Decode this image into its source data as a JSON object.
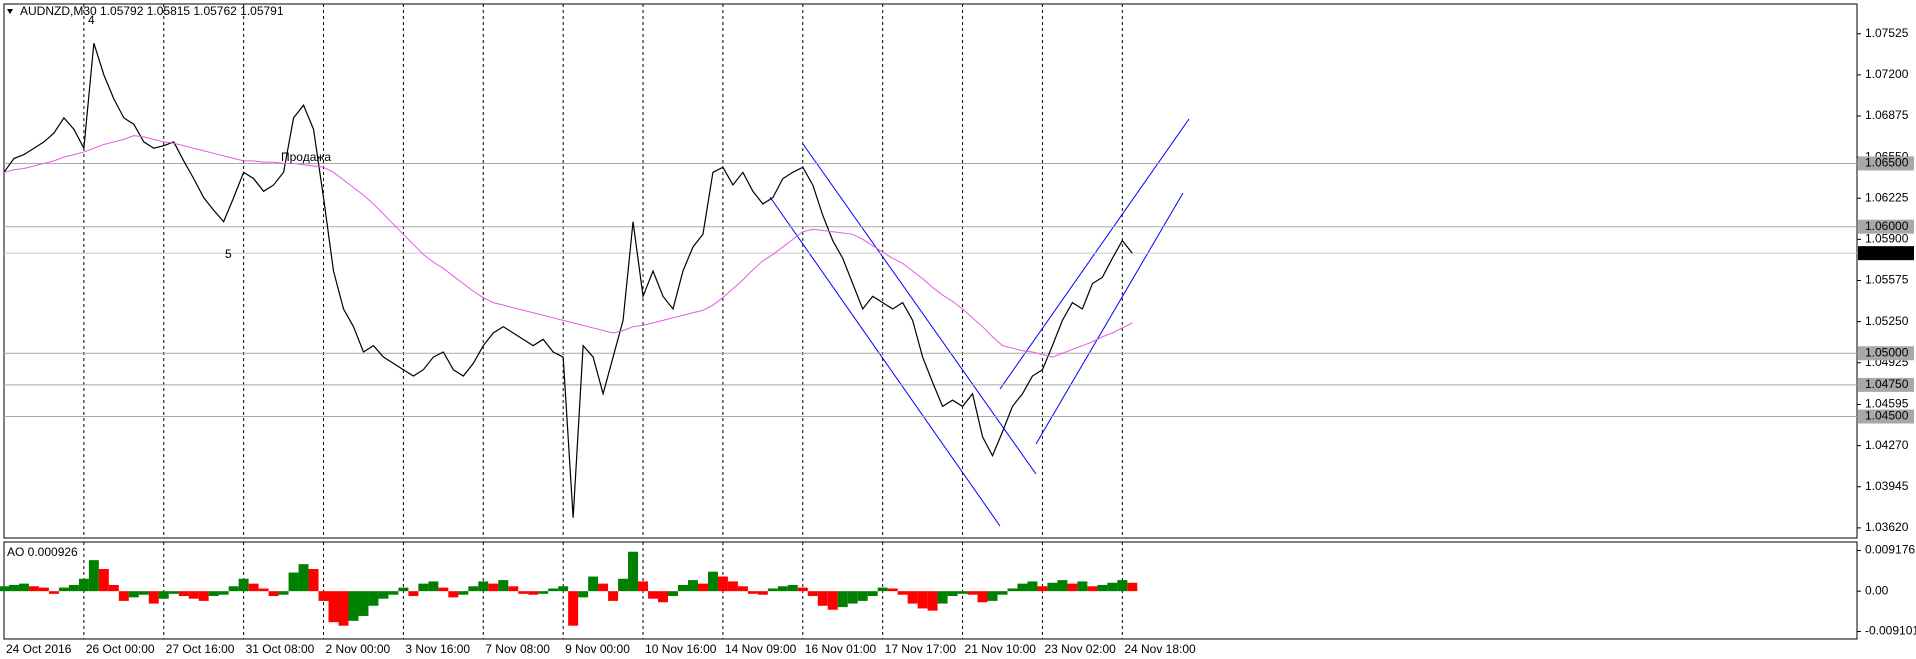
{
  "chart_data": [
    {
      "type": "line",
      "title": "AUDNZD,M30  1.05792 1.05815 1.05762 1.05791",
      "categories": [
        "24 Oct 2016",
        null,
        null,
        null,
        null,
        null,
        null,
        null,
        "26 Oct 00:00",
        null,
        null,
        null,
        null,
        null,
        null,
        null,
        "27 Oct 16:00",
        null,
        null,
        null,
        null,
        null,
        null,
        null,
        "31 Oct 08:00",
        null,
        null,
        null,
        null,
        null,
        null,
        null,
        "2 Nov 00:00",
        null,
        null,
        null,
        null,
        null,
        null,
        null,
        "3 Nov 16:00",
        null,
        null,
        null,
        null,
        null,
        null,
        null,
        "7 Nov 08:00",
        null,
        null,
        null,
        null,
        null,
        null,
        null,
        "9 Nov 00:00",
        null,
        null,
        null,
        null,
        null,
        null,
        null,
        "10 Nov 16:00",
        null,
        null,
        null,
        null,
        null,
        null,
        null,
        "14 Nov 09:00",
        null,
        null,
        null,
        null,
        null,
        null,
        null,
        "16 Nov 01:00",
        null,
        null,
        null,
        null,
        null,
        null,
        null,
        "17 Nov 17:00",
        null,
        null,
        null,
        null,
        null,
        null,
        null,
        "21 Nov 10:00",
        null,
        null,
        null,
        null,
        null,
        null,
        null,
        "23 Nov 02:00",
        null,
        null,
        null,
        null,
        null,
        null,
        null,
        "24 Nov 18:00",
        null
      ],
      "series": [
        {
          "color": "#000000",
          "values": [
            1.0643,
            1.0654,
            1.0657,
            1.0662,
            1.0667,
            1.0674,
            1.0686,
            1.0677,
            1.0662,
            1.0745,
            1.072,
            1.0701,
            1.0686,
            1.0681,
            1.0667,
            1.0662,
            1.0664,
            1.0667,
            1.0652,
            1.0638,
            1.0623,
            1.0613,
            1.0604,
            1.0623,
            1.0643,
            1.0638,
            1.0628,
            1.0633,
            1.0643,
            1.0686,
            1.0696,
            1.0677,
            1.0623,
            1.0565,
            1.0535,
            1.0521,
            1.0501,
            1.0506,
            1.0497,
            1.0492,
            1.0487,
            1.0482,
            1.0487,
            1.0497,
            1.0501,
            1.0487,
            1.0482,
            1.0492,
            1.0506,
            1.0516,
            1.0521,
            1.0516,
            1.0511,
            1.0506,
            1.0511,
            1.0501,
            1.0497,
            1.037,
            1.0506,
            1.0497,
            1.0468,
            1.0497,
            1.0526,
            1.0604,
            1.0545,
            1.0565,
            1.0545,
            1.0535,
            1.0565,
            1.0584,
            1.0594,
            1.0643,
            1.0647,
            1.0633,
            1.0643,
            1.0628,
            1.0618,
            1.0623,
            1.0638,
            1.0643,
            1.0647,
            1.0633,
            1.0609,
            1.0589,
            1.0575,
            1.0555,
            1.0535,
            1.0545,
            1.054,
            1.0535,
            1.054,
            1.0526,
            1.0497,
            1.0477,
            1.0458,
            1.0463,
            1.0458,
            1.0468,
            1.0434,
            1.0419,
            1.0438,
            1.0458,
            1.0468,
            1.0482,
            1.0487,
            1.0506,
            1.0526,
            1.054,
            1.0535,
            1.0555,
            1.056,
            1.0575,
            1.0589,
            1.0579
          ]
        },
        {
          "color": "#e35be3",
          "values": [
            1.0643,
            1.0645,
            1.0646,
            1.0648,
            1.065,
            1.0652,
            1.0655,
            1.0657,
            1.0659,
            1.0662,
            1.0665,
            1.0667,
            1.0669,
            1.0672,
            1.0671,
            1.0669,
            1.0667,
            1.0666,
            1.0664,
            1.0662,
            1.066,
            1.0658,
            1.0656,
            1.0654,
            1.0652,
            1.0652,
            1.0651,
            1.0651,
            1.065,
            1.065,
            1.0649,
            1.0648,
            1.0647,
            1.0643,
            1.0637,
            1.0631,
            1.0625,
            1.0618,
            1.061,
            1.0602,
            1.0594,
            1.0586,
            1.0578,
            1.0572,
            1.0567,
            1.0561,
            1.0555,
            1.0549,
            1.0544,
            1.054,
            1.0538,
            1.0536,
            1.0534,
            1.0532,
            1.053,
            1.0528,
            1.0526,
            1.0524,
            1.0522,
            1.052,
            1.0518,
            1.0516,
            1.0518,
            1.0521,
            1.0522,
            1.0524,
            1.0526,
            1.0528,
            1.053,
            1.0532,
            1.0534,
            1.0538,
            1.0544,
            1.0551,
            1.0558,
            1.0566,
            1.0573,
            1.0578,
            1.0584,
            1.059,
            1.0596,
            1.0598,
            1.0597,
            1.0596,
            1.0595,
            1.0594,
            1.059,
            1.0585,
            1.058,
            1.0575,
            1.0571,
            1.0565,
            1.0559,
            1.0552,
            1.0546,
            1.0541,
            1.0535,
            1.0528,
            1.0521,
            1.0513,
            1.0506,
            1.0504,
            1.0502,
            1.0501,
            1.0499,
            1.0497,
            1.05,
            1.0503,
            1.0506,
            1.0509,
            1.0513,
            1.0516,
            1.052,
            1.0524
          ]
        }
      ],
      "ylim": [
        1.0354,
        1.0776
      ],
      "yticks": [
        1.07525,
        {
          "value": 1.072,
          "label": "1.07200"
        },
        1.06875,
        {
          "value": 1.0655,
          "label": "1.06550"
        },
        1.06225,
        {
          "value": 1.059,
          "label": "1.05900"
        },
        1.05575,
        {
          "value": 1.0525,
          "label": "1.05250"
        },
        1.04925,
        1.04595,
        {
          "value": 1.0427,
          "label": "1.04270"
        },
        1.03945,
        {
          "value": 1.0362,
          "label": "1.03620"
        }
      ],
      "levels": [
        {
          "value": 1.065,
          "label": "1.06500"
        },
        {
          "value": 1.06,
          "label": "1.06000"
        },
        {
          "value": 1.05,
          "label": "1.05000"
        },
        {
          "value": 1.0475,
          "label": "1.04750"
        },
        {
          "value": 1.045,
          "label": "1.04500"
        }
      ],
      "level_color": "#a8a8a8",
      "last_price": 1.05791,
      "annotations": [
        "4",
        "Продажа",
        "5"
      ],
      "annotation_color": "#e35be3"
    },
    {
      "type": "bar",
      "title": "AO 0.000926",
      "values": [
        0.0011,
        0.0014,
        0.0017,
        0.0011,
        0.0008,
        -0.0006,
        0.0008,
        0.0014,
        0.0028,
        0.007,
        0.005,
        0.0014,
        -0.0022,
        -0.0014,
        -0.0008,
        -0.0028,
        -0.0017,
        -0.0006,
        -0.0011,
        -0.0017,
        -0.0022,
        -0.0011,
        -0.0008,
        0.0011,
        0.0028,
        0.0017,
        0.0006,
        -0.0011,
        -0.0008,
        0.0042,
        0.0061,
        0.005,
        -0.0022,
        -0.007,
        -0.0078,
        -0.0067,
        -0.0056,
        -0.0033,
        -0.0017,
        -0.0008,
        0.0008,
        -0.0011,
        0.0017,
        0.0022,
        0.0008,
        -0.0014,
        -0.0008,
        0.0011,
        0.0022,
        0.0017,
        0.0025,
        0.0011,
        -0.0006,
        -0.0008,
        -0.0006,
        0.0006,
        0.0011,
        -0.0078,
        -0.0014,
        0.0033,
        0.0017,
        -0.0022,
        0.0028,
        0.0089,
        0.0022,
        -0.0017,
        -0.0025,
        -0.0011,
        0.0014,
        0.0025,
        0.0017,
        0.0044,
        0.0033,
        0.0022,
        0.0011,
        -0.0006,
        -0.0008,
        0.0006,
        0.0011,
        0.0014,
        0.0008,
        -0.0011,
        -0.0033,
        -0.0042,
        -0.0036,
        -0.0028,
        -0.0022,
        -0.0011,
        0.0008,
        0.0006,
        -0.0008,
        -0.0028,
        -0.0039,
        -0.0044,
        -0.0028,
        -0.0011,
        -0.0006,
        -0.0008,
        -0.0025,
        -0.0022,
        -0.0008,
        0.0006,
        0.0017,
        0.0022,
        0.0011,
        0.0019,
        0.0025,
        0.0017,
        0.0022,
        0.0011,
        0.0014,
        0.0019,
        0.0025,
        0.0019
      ],
      "up_color": "#008000",
      "down_color": "#ff0000",
      "ylim": [
        -0.0108,
        0.0111
      ],
      "yticks": [
        0.009176,
        {
          "value": 0,
          "label": "0.00"
        },
        -0.009101
      ]
    }
  ]
}
